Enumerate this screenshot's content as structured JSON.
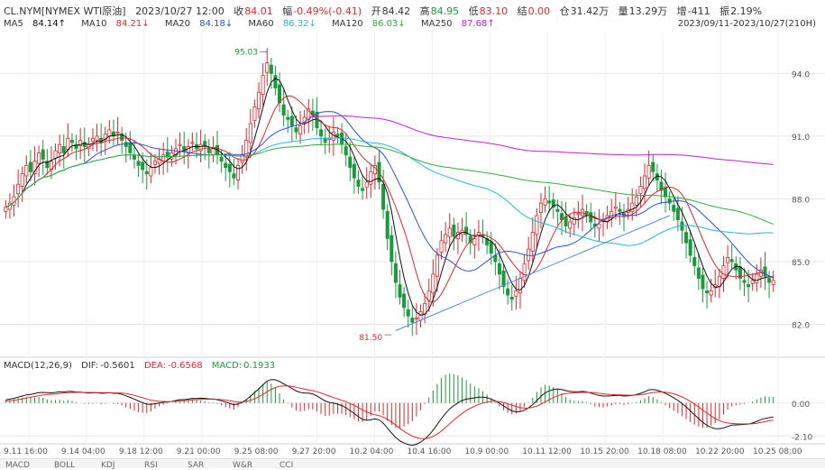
{
  "header": {
    "symbol": "CL.NYM[NYMEX WTI原油]",
    "datetime": "2023/10/27 12:00",
    "close_label": "收",
    "close_value": "84.01",
    "change_label": "幅",
    "change_value": "-0.49%(-0.41)",
    "open_label": "开",
    "open_value": "84.42",
    "high_label": "高",
    "high_value": "84.95",
    "low_label": "低",
    "low_value": "83.10",
    "settle_label": "结",
    "settle_value": "0.00",
    "hold_label": "仓",
    "hold_value": "31.42万",
    "volume_label": "量",
    "volume_value": "13.29万",
    "increase_label": "增",
    "increase_value": "-411",
    "amplitude_label": "振",
    "amplitude_value": "2.19%"
  },
  "ma_legend": [
    {
      "label": "MA5",
      "value": "84.14↑",
      "color": "#111111"
    },
    {
      "label": "MA10",
      "value": "84.21↓",
      "color": "#e4252c"
    },
    {
      "label": "MA20",
      "value": "84.18↓",
      "color": "#2f4fd8"
    },
    {
      "label": "MA60",
      "value": "86.32↓",
      "color": "#23b5e0"
    },
    {
      "label": "MA120",
      "value": "86.03↓",
      "color": "#2fae3a"
    },
    {
      "label": "MA250",
      "value": "87.68↑",
      "color": "#c21fd6"
    }
  ],
  "range_text": "2023/09/11-2023/10/27(210H)",
  "macd_legend": {
    "name": "MACD(12,26,9)",
    "dif_label": "DIF:",
    "dif_value": "-0.5601",
    "dea_label": "DEA:",
    "dea_value": "-0.6568",
    "macd_label": "MACD:",
    "macd_value": "0.1933"
  },
  "tabs": [
    "MACD",
    "BOLL",
    "KDJ",
    "RSI",
    "SAR",
    "W&R",
    "CCI"
  ],
  "colors": {
    "up": "#e4252c",
    "down": "#1a9a3c",
    "grid": "#e6e6e6",
    "trend": "#4a90d9"
  },
  "chart_data": {
    "type": "candlestick",
    "price_axis": {
      "ticks": [
        "94.0",
        "91.0",
        "88.0",
        "85.0",
        "82.0"
      ],
      "ylim": [
        80.6,
        96.0
      ]
    },
    "macd_axis": {
      "ticks": [
        "0.00",
        "-2.10"
      ],
      "ylim": [
        -2.6,
        2.0
      ]
    },
    "x_ticks": [
      "9.11 16:00",
      "9.14 04:00",
      "9.18 12:00",
      "9.21 00:00",
      "9.25 08:00",
      "9.27 20:00",
      "10.2 04:00",
      "10.4 16:00",
      "10.9 00:00",
      "10.11 12:00",
      "10.15 20:00",
      "10.18 08:00",
      "10.22 20:00",
      "10.25 08:00"
    ],
    "annotations": [
      {
        "text": "95.03",
        "x_index": 63,
        "y": 95.03
      },
      {
        "text": "81.50",
        "x_index": 93,
        "y": 81.5
      }
    ],
    "closes": [
      87.6,
      87.8,
      88.1,
      88.7,
      89.2,
      89.6,
      89.3,
      89.8,
      90.2,
      89.9,
      89.5,
      89.8,
      90.3,
      90.6,
      90.2,
      90.9,
      90.7,
      90.4,
      90.8,
      90.5,
      90.6,
      90.9,
      91.0,
      90.7,
      91.1,
      91.3,
      91.0,
      91.2,
      90.8,
      90.5,
      90.2,
      89.9,
      89.6,
      89.4,
      89.2,
      89.5,
      89.8,
      89.9,
      90.1,
      90.0,
      90.2,
      90.4,
      90.6,
      90.3,
      90.5,
      90.7,
      90.4,
      90.6,
      90.5,
      90.2,
      90.4,
      90.1,
      89.8,
      89.5,
      89.3,
      89.0,
      89.6,
      90.1,
      90.8,
      91.6,
      92.4,
      93.1,
      93.9,
      94.5,
      94.0,
      93.3,
      92.6,
      92.0,
      91.8,
      91.5,
      91.2,
      91.5,
      91.9,
      92.3,
      92.0,
      91.4,
      91.0,
      90.7,
      90.9,
      91.2,
      91.0,
      90.6,
      90.1,
      89.5,
      89.0,
      88.6,
      88.4,
      88.8,
      89.3,
      89.6,
      88.8,
      87.5,
      86.1,
      85.0,
      84.0,
      83.3,
      82.8,
      82.4,
      82.1,
      82.3,
      82.6,
      83.0,
      83.6,
      84.4,
      85.3,
      86.0,
      86.3,
      86.6,
      86.2,
      86.4,
      86.5,
      86.3,
      85.9,
      86.1,
      86.4,
      86.2,
      85.8,
      85.4,
      85.0,
      84.4,
      83.8,
      83.4,
      83.2,
      83.6,
      84.2,
      84.9,
      85.6,
      86.4,
      87.2,
      87.8,
      88.0,
      87.8,
      87.6,
      87.4,
      87.0,
      86.7,
      86.9,
      87.1,
      87.3,
      87.5,
      87.2,
      86.9,
      86.7,
      86.8,
      87.0,
      87.2,
      87.4,
      87.6,
      87.4,
      87.2,
      87.5,
      87.8,
      88.1,
      88.6,
      89.1,
      89.6,
      89.3,
      88.9,
      88.4,
      88.1,
      87.8,
      87.4,
      87.0,
      86.5,
      85.9,
      85.3,
      84.8,
      84.2,
      83.7,
      83.5,
      83.6,
      83.9,
      84.3,
      84.8,
      85.2,
      85.0,
      84.6,
      84.2,
      84.0,
      83.8,
      84.1,
      84.4,
      84.6,
      84.3,
      84.0,
      84.1
    ],
    "dif": [
      0.2,
      0.25,
      0.3,
      0.38,
      0.45,
      0.52,
      0.55,
      0.6,
      0.66,
      0.68,
      0.66,
      0.65,
      0.68,
      0.72,
      0.7,
      0.74,
      0.74,
      0.7,
      0.7,
      0.66,
      0.64,
      0.65,
      0.66,
      0.62,
      0.64,
      0.66,
      0.62,
      0.62,
      0.55,
      0.46,
      0.36,
      0.25,
      0.13,
      0.03,
      -0.07,
      -0.08,
      -0.04,
      0,
      0.05,
      0.07,
      0.11,
      0.16,
      0.22,
      0.22,
      0.25,
      0.3,
      0.29,
      0.31,
      0.3,
      0.26,
      0.26,
      0.21,
      0.14,
      0.06,
      -0.02,
      -0.11,
      -0.06,
      0.05,
      0.22,
      0.43,
      0.66,
      0.9,
      1.16,
      1.4,
      1.5,
      1.48,
      1.38,
      1.22,
      1.08,
      0.93,
      0.77,
      0.68,
      0.64,
      0.64,
      0.58,
      0.45,
      0.29,
      0.13,
      0.04,
      0,
      -0.07,
      -0.16,
      -0.3,
      -0.48,
      -0.67,
      -0.87,
      -1.04,
      -1.1,
      -1.07,
      -1.01,
      -1.07,
      -1.29,
      -1.6,
      -1.91,
      -2.2,
      -2.41,
      -2.55,
      -2.65,
      -2.69,
      -2.63,
      -2.49,
      -2.3,
      -2.05,
      -1.73,
      -1.37,
      -0.99,
      -0.66,
      -0.37,
      -0.17,
      0.01,
      0.16,
      0.25,
      0.29,
      0.33,
      0.38,
      0.38,
      0.34,
      0.26,
      0.14,
      -0.01,
      -0.19,
      -0.36,
      -0.5,
      -0.56,
      -0.55,
      -0.46,
      -0.3,
      -0.1,
      0.16,
      0.43,
      0.65,
      0.78,
      0.86,
      0.89,
      0.86,
      0.79,
      0.74,
      0.72,
      0.72,
      0.74,
      0.71,
      0.64,
      0.55,
      0.49,
      0.45,
      0.45,
      0.46,
      0.49,
      0.48,
      0.45,
      0.46,
      0.49,
      0.54,
      0.62,
      0.72,
      0.84,
      0.86,
      0.82,
      0.73,
      0.62,
      0.49,
      0.34,
      0.17,
      -0.03,
      -0.25,
      -0.5,
      -0.75,
      -1.0,
      -1.24,
      -1.42,
      -1.55,
      -1.63,
      -1.64,
      -1.59,
      -1.49,
      -1.41,
      -1.39,
      -1.38,
      -1.36,
      -1.34,
      -1.27,
      -1.17,
      -1.06,
      -0.98,
      -0.93,
      -0.89
    ],
    "dea": [
      0.12,
      0.15,
      0.18,
      0.22,
      0.27,
      0.32,
      0.37,
      0.42,
      0.47,
      0.51,
      0.54,
      0.56,
      0.58,
      0.61,
      0.63,
      0.65,
      0.67,
      0.68,
      0.69,
      0.68,
      0.67,
      0.67,
      0.67,
      0.66,
      0.66,
      0.66,
      0.65,
      0.65,
      0.63,
      0.6,
      0.55,
      0.49,
      0.42,
      0.34,
      0.26,
      0.19,
      0.14,
      0.11,
      0.1,
      0.09,
      0.1,
      0.11,
      0.13,
      0.15,
      0.17,
      0.2,
      0.21,
      0.23,
      0.24,
      0.24,
      0.24,
      0.24,
      0.22,
      0.19,
      0.15,
      0.1,
      0.07,
      0.07,
      0.1,
      0.17,
      0.27,
      0.4,
      0.55,
      0.72,
      0.88,
      0.99,
      1.07,
      1.1,
      1.1,
      1.07,
      1.01,
      0.95,
      0.89,
      0.84,
      0.79,
      0.72,
      0.64,
      0.54,
      0.44,
      0.35,
      0.27,
      0.18,
      0.09,
      -0.03,
      -0.15,
      -0.29,
      -0.44,
      -0.57,
      -0.67,
      -0.74,
      -0.8,
      -0.9,
      -1.04,
      -1.21,
      -1.41,
      -1.61,
      -1.8,
      -1.97,
      -2.11,
      -2.2,
      -2.26,
      -2.27,
      -2.23,
      -2.13,
      -1.98,
      -1.79,
      -1.56,
      -1.32,
      -1.09,
      -0.87,
      -0.66,
      -0.48,
      -0.33,
      -0.2,
      -0.09,
      -0.0,
      0.07,
      0.11,
      0.12,
      0.09,
      0.04,
      -0.05,
      -0.14,
      -0.22,
      -0.29,
      -0.33,
      -0.32,
      -0.27,
      -0.19,
      -0.07,
      0.07,
      0.22,
      0.35,
      0.46,
      0.55,
      0.6,
      0.63,
      0.65,
      0.66,
      0.68,
      0.68,
      0.68,
      0.66,
      0.62,
      0.59,
      0.56,
      0.54,
      0.53,
      0.52,
      0.51,
      0.5,
      0.5,
      0.51,
      0.53,
      0.57,
      0.62,
      0.67,
      0.7,
      0.7,
      0.69,
      0.65,
      0.59,
      0.5,
      0.39,
      0.26,
      0.11,
      -0.06,
      -0.25,
      -0.45,
      -0.64,
      -0.83,
      -0.99,
      -1.12,
      -1.22,
      -1.28,
      -1.3,
      -1.32,
      -1.33,
      -1.33,
      -1.33,
      -1.32,
      -1.29,
      -1.24,
      -1.19,
      -1.13,
      -1.08
    ]
  }
}
